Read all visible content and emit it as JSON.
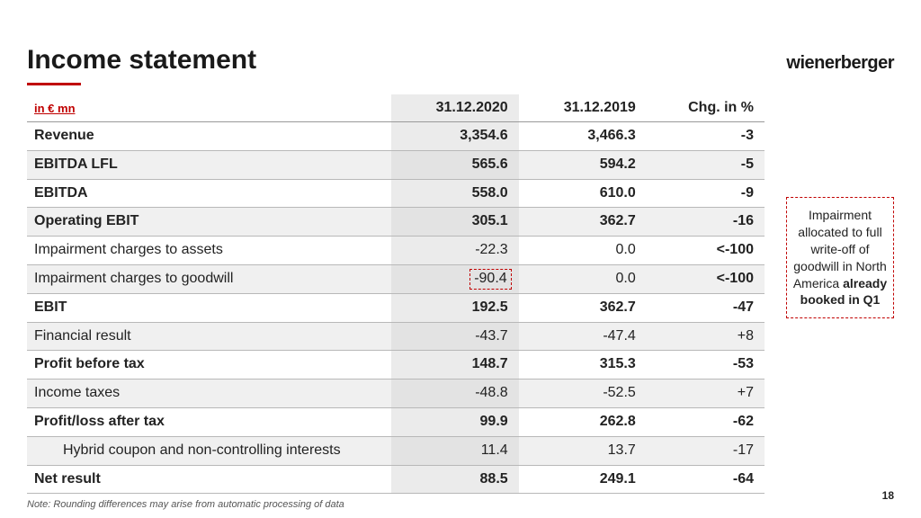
{
  "title": "Income statement",
  "logo": "wienerberger",
  "unit_label": "in € mn",
  "columns": {
    "y2020": "31.12.2020",
    "y2019": "31.12.2019",
    "chg": "Chg. in %"
  },
  "rows": [
    {
      "label": "Revenue",
      "y2020": "3,354.6",
      "y2019": "3,466.3",
      "chg": "-3",
      "bold": true,
      "shade": false,
      "indent": false,
      "highlight2020": false
    },
    {
      "label": "EBITDA LFL",
      "y2020": "565.6",
      "y2019": "594.2",
      "chg": "-5",
      "bold": true,
      "shade": true,
      "indent": false,
      "highlight2020": false
    },
    {
      "label": "EBITDA",
      "y2020": "558.0",
      "y2019": "610.0",
      "chg": "-9",
      "bold": true,
      "shade": false,
      "indent": false,
      "highlight2020": false
    },
    {
      "label": "Operating EBIT",
      "y2020": "305.1",
      "y2019": "362.7",
      "chg": "-16",
      "bold": true,
      "shade": true,
      "indent": false,
      "highlight2020": false
    },
    {
      "label": "Impairment charges to assets",
      "y2020": "-22.3",
      "y2019": "0.0",
      "chg": "<-100",
      "bold": false,
      "shade": false,
      "indent": false,
      "highlight2020": false
    },
    {
      "label": "Impairment charges to goodwill",
      "y2020": "-90.4",
      "y2019": "0.0",
      "chg": "<-100",
      "bold": false,
      "shade": true,
      "indent": false,
      "highlight2020": true
    },
    {
      "label": "EBIT",
      "y2020": "192.5",
      "y2019": "362.7",
      "chg": "-47",
      "bold": true,
      "shade": false,
      "indent": false,
      "highlight2020": false
    },
    {
      "label": "Financial result",
      "y2020": "-43.7",
      "y2019": "-47.4",
      "chg": "+8",
      "bold": false,
      "shade": true,
      "indent": false,
      "highlight2020": false
    },
    {
      "label": "Profit before tax",
      "y2020": "148.7",
      "y2019": "315.3",
      "chg": "-53",
      "bold": true,
      "shade": false,
      "indent": false,
      "highlight2020": false
    },
    {
      "label": "Income taxes",
      "y2020": "-48.8",
      "y2019": "-52.5",
      "chg": "+7",
      "bold": false,
      "shade": true,
      "indent": false,
      "highlight2020": false
    },
    {
      "label": "Profit/loss after tax",
      "y2020": "99.9",
      "y2019": "262.8",
      "chg": "-62",
      "bold": true,
      "shade": false,
      "indent": false,
      "highlight2020": false
    },
    {
      "label": "Hybrid coupon and non-controlling interests",
      "y2020": "11.4",
      "y2019": "13.7",
      "chg": "-17",
      "bold": false,
      "shade": true,
      "indent": true,
      "highlight2020": false
    },
    {
      "label": "Net result",
      "y2020": "88.5",
      "y2019": "249.1",
      "chg": "-64",
      "bold": true,
      "shade": false,
      "indent": false,
      "highlight2020": false
    }
  ],
  "callout": {
    "line1": "Impairment allocated to full write-off of goodwill in North America",
    "line2_strong": "already booked in Q1"
  },
  "footnote": "Note: Rounding differences may arise from automatic processing of data",
  "page_number": "18",
  "colors": {
    "accent": "#c00000",
    "shade": "#f0f0f0",
    "col_shade": "#ebebeb"
  }
}
